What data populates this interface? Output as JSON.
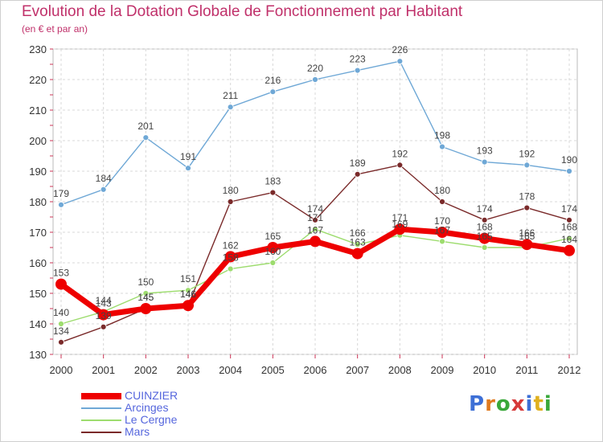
{
  "title": "Evolution de la Dotation Globale de Fonctionnement par Habitant",
  "subtitle": "(en € et par an)",
  "logo": {
    "text": "Proxiti",
    "colors": [
      "#3d6fd6",
      "#e07a1f",
      "#3aa83a",
      "#d63a3a",
      "#3d6fd6",
      "#e0b01f",
      "#3aa83a"
    ]
  },
  "chart_data": {
    "type": "line",
    "x": [
      "2000",
      "2001",
      "2002",
      "2003",
      "2004",
      "2005",
      "2006",
      "2007",
      "2008",
      "2009",
      "2010",
      "2011",
      "2012"
    ],
    "ylim": [
      130,
      230
    ],
    "yticks": [
      130,
      140,
      150,
      160,
      170,
      180,
      190,
      200,
      210,
      220,
      230
    ],
    "grid": true,
    "legend": "bottom-left",
    "series": [
      {
        "name": "CUINZIER",
        "color": "#ee0000",
        "values": [
          153,
          143,
          145,
          146,
          162,
          165,
          167,
          163,
          171,
          170,
          168,
          166,
          164
        ],
        "labels": [
          "153",
          "143",
          "145",
          "146",
          "162",
          "165",
          "167",
          "163",
          "171",
          "170",
          "168",
          "166",
          "164"
        ]
      },
      {
        "name": "Arcinges",
        "color": "#6fa8d6",
        "values": [
          179,
          184,
          201,
          191,
          211,
          216,
          220,
          223,
          226,
          198,
          193,
          192,
          190
        ],
        "labels": [
          "179",
          "184",
          "201",
          "191",
          "211",
          "216",
          "220",
          "223",
          "226",
          "198",
          "193",
          "192",
          "190"
        ]
      },
      {
        "name": "Le Cergne",
        "color": "#9ddc6e",
        "values": [
          140,
          144,
          150,
          151,
          158,
          160,
          171,
          166,
          169,
          167,
          165,
          165,
          168
        ],
        "labels": [
          "140",
          "144",
          "150",
          "151",
          "158",
          "160",
          "171",
          "166",
          "169",
          "167",
          "165",
          "165",
          "168"
        ]
      },
      {
        "name": "Mars",
        "color": "#7a2a2a",
        "values": [
          134,
          139,
          145,
          146,
          180,
          183,
          174,
          189,
          192,
          180,
          174,
          178,
          174
        ],
        "labels": [
          "134",
          "139",
          "145",
          "146",
          "180",
          "183",
          "174",
          "189",
          "192",
          "180",
          "174",
          "178",
          "174"
        ]
      }
    ]
  }
}
